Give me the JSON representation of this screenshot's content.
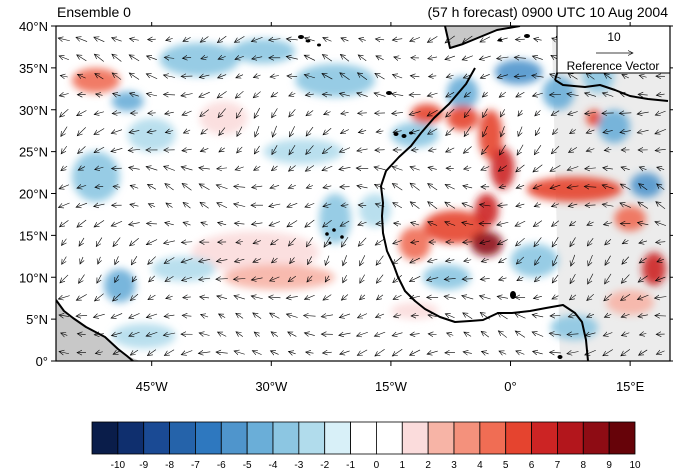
{
  "title_left": "Ensemble 0",
  "title_right": "(57 h forecast) 0900 UTC 10 Aug 2004",
  "map": {
    "lon_range": [
      -57,
      20
    ],
    "lat_range": [
      0,
      40
    ],
    "lat_ticks": [
      {
        "value": 40,
        "label": "40°N"
      },
      {
        "value": 35,
        "label": "35°N"
      },
      {
        "value": 30,
        "label": "30°N"
      },
      {
        "value": 25,
        "label": "25°N"
      },
      {
        "value": 20,
        "label": "20°N"
      },
      {
        "value": 15,
        "label": "15°N"
      },
      {
        "value": 10,
        "label": "10°N"
      },
      {
        "value": 5,
        "label": "5°N"
      },
      {
        "value": 0,
        "label": "0°"
      }
    ],
    "lon_ticks": [
      {
        "value": -45,
        "label": "45°W"
      },
      {
        "value": -30,
        "label": "30°W"
      },
      {
        "value": -15,
        "label": "15°W"
      },
      {
        "value": 0,
        "label": "0°"
      },
      {
        "value": 15,
        "label": "15°E"
      }
    ],
    "vector_spacing_deg": 2.2,
    "reference_vector": {
      "magnitude": "10",
      "label": "Reference Vector"
    },
    "land_color": "#c8c8c8",
    "coast_color": "#000000"
  },
  "anomaly_features": [
    {
      "lon": -52,
      "lat": 33.5,
      "rx": 3,
      "ry": 1.5,
      "value": 5
    },
    {
      "lon": -48,
      "lat": 31,
      "rx": 2,
      "ry": 1.2,
      "value": -4
    },
    {
      "lon": -39,
      "lat": 36,
      "rx": 5,
      "ry": 2,
      "value": -3
    },
    {
      "lon": -31,
      "lat": 37,
      "rx": 4,
      "ry": 1.5,
      "value": -3
    },
    {
      "lon": -22,
      "lat": 33.5,
      "rx": 5,
      "ry": 2,
      "value": -3
    },
    {
      "lon": -45,
      "lat": 27,
      "rx": 3,
      "ry": 2,
      "value": -2
    },
    {
      "lon": -36,
      "lat": 29,
      "rx": 3,
      "ry": 2,
      "value": 2
    },
    {
      "lon": -26,
      "lat": 25,
      "rx": 5,
      "ry": 1.5,
      "value": -2
    },
    {
      "lon": -52,
      "lat": 22,
      "rx": 3,
      "ry": 3,
      "value": -3
    },
    {
      "lon": -32,
      "lat": 13,
      "rx": 8,
      "ry": 2.5,
      "value": 2
    },
    {
      "lon": -41,
      "lat": 11,
      "rx": 4,
      "ry": 1.5,
      "value": -2
    },
    {
      "lon": -29,
      "lat": 10,
      "rx": 7,
      "ry": 1.5,
      "value": 3
    },
    {
      "lon": -49,
      "lat": 9,
      "rx": 2,
      "ry": 2,
      "value": -4
    },
    {
      "lon": -22,
      "lat": 17,
      "rx": 2,
      "ry": 3,
      "value": -3
    },
    {
      "lon": -17,
      "lat": 18,
      "rx": 2,
      "ry": 2,
      "value": -2
    },
    {
      "lon": -12,
      "lat": 27,
      "rx": 3,
      "ry": 1.5,
      "value": -3
    },
    {
      "lon": -6,
      "lat": 32,
      "rx": 2,
      "ry": 2,
      "value": -4
    },
    {
      "lon": -10.5,
      "lat": 29.5,
      "rx": 2,
      "ry": 1.2,
      "value": 6
    },
    {
      "lon": -6,
      "lat": 29,
      "rx": 2,
      "ry": 1.5,
      "value": 6
    },
    {
      "lon": -2.5,
      "lat": 27,
      "rx": 1.5,
      "ry": 3,
      "value": 6
    },
    {
      "lon": -1,
      "lat": 23,
      "rx": 1.5,
      "ry": 2.5,
      "value": 7
    },
    {
      "lon": 1,
      "lat": 34.5,
      "rx": 3,
      "ry": 1.5,
      "value": -5
    },
    {
      "lon": 6,
      "lat": 32,
      "rx": 2,
      "ry": 2,
      "value": -4
    },
    {
      "lon": 11,
      "lat": 34,
      "rx": 2,
      "ry": 2,
      "value": -3
    },
    {
      "lon": 10.5,
      "lat": 29,
      "rx": 1,
      "ry": 1,
      "value": 6
    },
    {
      "lon": 13,
      "lat": 28,
      "rx": 2,
      "ry": 2,
      "value": -4
    },
    {
      "lon": 8,
      "lat": 20.5,
      "rx": 6,
      "ry": 1.5,
      "value": 6
    },
    {
      "lon": 15,
      "lat": 17,
      "rx": 2,
      "ry": 1.5,
      "value": 5
    },
    {
      "lon": 17,
      "lat": 21,
      "rx": 2,
      "ry": 1.5,
      "value": -5
    },
    {
      "lon": -7,
      "lat": 16,
      "rx": 4,
      "ry": 2,
      "value": 6
    },
    {
      "lon": -3,
      "lat": 14,
      "rx": 2,
      "ry": 1.5,
      "value": 9
    },
    {
      "lon": -3,
      "lat": 18,
      "rx": 1.5,
      "ry": 2,
      "value": 7
    },
    {
      "lon": -12,
      "lat": 14,
      "rx": 2,
      "ry": 2,
      "value": 5
    },
    {
      "lon": -8,
      "lat": 10,
      "rx": 3,
      "ry": 1.5,
      "value": -3
    },
    {
      "lon": 3,
      "lat": 12,
      "rx": 3,
      "ry": 2,
      "value": -3
    },
    {
      "lon": 18,
      "lat": 11,
      "rx": 1.5,
      "ry": 2,
      "value": 7
    },
    {
      "lon": 15,
      "lat": 7,
      "rx": 3,
      "ry": 1.5,
      "value": 3
    },
    {
      "lon": 8,
      "lat": 4,
      "rx": 3,
      "ry": 1.5,
      "value": -3
    },
    {
      "lon": -12,
      "lat": 6,
      "rx": 3,
      "ry": 1,
      "value": 2
    },
    {
      "lon": -46,
      "lat": 3,
      "rx": 4,
      "ry": 1.5,
      "value": -2
    }
  ],
  "colorbar": {
    "labels": [
      "-10",
      "-9",
      "-8",
      "-7",
      "-6",
      "-5",
      "-4",
      "-3",
      "-2",
      "-1",
      "0",
      "1",
      "2",
      "3",
      "4",
      "5",
      "6",
      "7",
      "8",
      "9",
      "10"
    ],
    "colors": [
      "#0a1d4a",
      "#0f2f6e",
      "#1a4a94",
      "#2563aa",
      "#2e78bf",
      "#4f95cc",
      "#6aaed8",
      "#8cc6e2",
      "#b1dcec",
      "#d8f0f8",
      "#ffffff",
      "#ffffff",
      "#fbdcdc",
      "#f7b4a6",
      "#f4917c",
      "#f06d54",
      "#e5442f",
      "#cc2424",
      "#b3161c",
      "#8e0c14",
      "#660309"
    ]
  }
}
